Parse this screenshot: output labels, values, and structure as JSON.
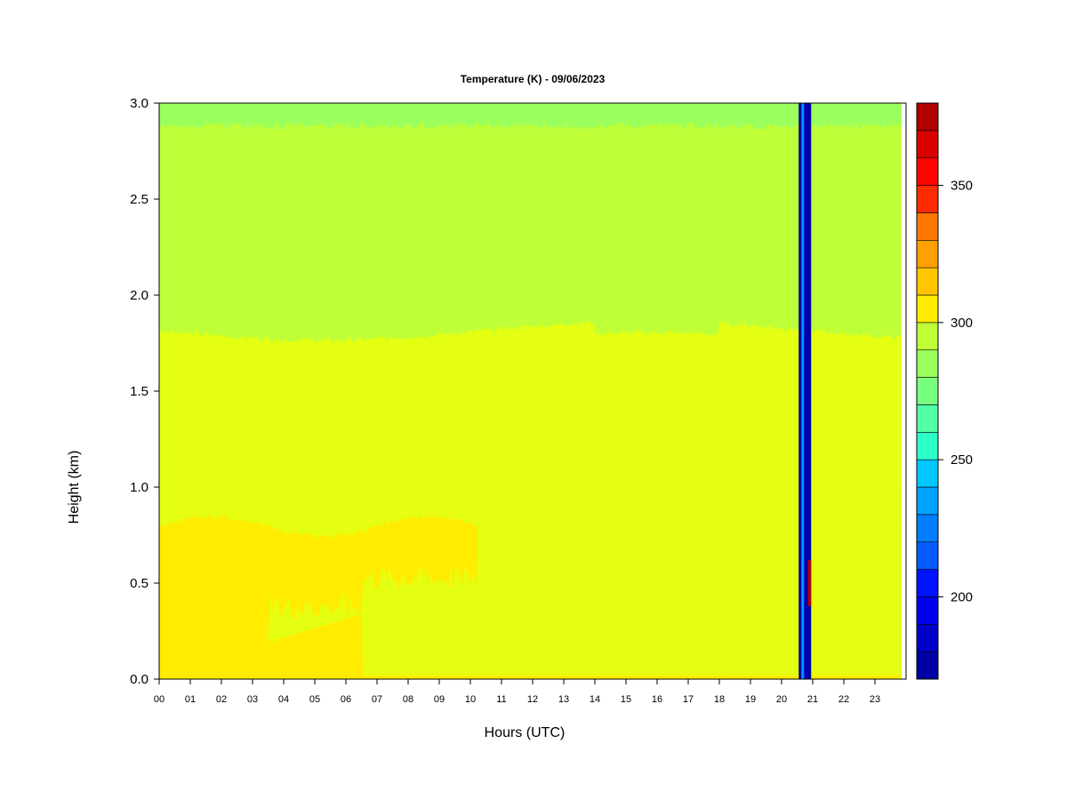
{
  "chart_data": {
    "type": "heatmap",
    "title": "Temperature (K) - 09/06/2023",
    "xlabel": "Hours (UTC)",
    "ylabel": "Height (km)",
    "xlim": [
      0,
      24
    ],
    "ylim": [
      0,
      3
    ],
    "x_ticks": [
      0,
      1,
      2,
      3,
      4,
      5,
      6,
      7,
      8,
      9,
      10,
      11,
      12,
      13,
      14,
      15,
      16,
      17,
      18,
      19,
      20,
      21,
      22,
      23
    ],
    "x_tick_labels": [
      "00",
      "01",
      "02",
      "03",
      "04",
      "05",
      "06",
      "07",
      "08",
      "09",
      "10",
      "11",
      "12",
      "13",
      "14",
      "15",
      "16",
      "17",
      "18",
      "19",
      "20",
      "21",
      "22",
      "23"
    ],
    "y_ticks": [
      0,
      0.5,
      1,
      1.5,
      2,
      2.5,
      3
    ],
    "y_tick_labels": [
      "0.0",
      "0.5",
      "1.0",
      "1.5",
      "2.0",
      "2.5",
      "3.0"
    ],
    "data_x_range": [
      0,
      23.85
    ],
    "colorbar": {
      "range": [
        170,
        380
      ],
      "levels": 21,
      "step": 10,
      "ticks": [
        200,
        250,
        300,
        350
      ],
      "tick_labels": [
        "200",
        "250",
        "300",
        "350"
      ],
      "colors": [
        "#00007f",
        "#0000a4",
        "#0000c8",
        "#0000ed",
        "#0012ff",
        "#0036ff",
        "#005aff",
        "#007eff",
        "#00a2ff",
        "#00c6ff",
        "#09ebee",
        "#2dffc9",
        "#51ffa5",
        "#76ff80",
        "#9bff5c",
        "#bfff37",
        "#e4ff12",
        "#ffec00",
        "#ffc500",
        "#ff9f00",
        "#ff7800",
        "#ff5100",
        "#ff2a00",
        "#ff0300",
        "#d90000",
        "#b00000",
        "#7f0000"
      ]
    },
    "layers": [
      {
        "height_km": 0.2,
        "value_K": 305
      },
      {
        "height_km": 0.5,
        "value_K": 305
      },
      {
        "height_km": 1.2,
        "value_K": 302
      },
      {
        "height_km": 1.78,
        "value_K": 298
      },
      {
        "height_km": 2.4,
        "value_K": 290
      },
      {
        "height_km": 2.95,
        "value_K": 280
      }
    ],
    "gap_hours": [
      20.55,
      20.95
    ],
    "gap_value_K": 175,
    "anomaly": {
      "hours": [
        20.85,
        20.95
      ],
      "height_km": [
        0.38,
        0.62
      ],
      "value_K": 375
    }
  }
}
